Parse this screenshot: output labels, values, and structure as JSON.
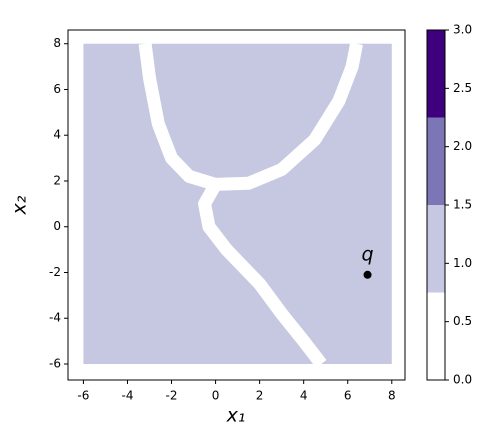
{
  "chart_data": {
    "type": "contour",
    "xlabel": "x₁",
    "ylabel": "x₂",
    "xlim": [
      -6.7,
      8.6
    ],
    "ylim": [
      -6.7,
      8.6
    ],
    "xticks": [
      -6,
      -4,
      -2,
      0,
      2,
      4,
      6,
      8
    ],
    "yticks": [
      -6,
      -4,
      -2,
      0,
      2,
      4,
      6,
      8
    ],
    "region": {
      "value": 1,
      "x": [
        -6,
        8
      ],
      "y": [
        -6,
        8
      ]
    },
    "bands": [
      {
        "value": 0,
        "x": [
          -3.2,
          -3.0,
          -2.6,
          -2.0,
          -1.2,
          0,
          1.5,
          3.0,
          4.5,
          5.6,
          6.2,
          6.4
        ],
        "y": [
          8.0,
          6.5,
          4.5,
          3.0,
          2.2,
          1.85,
          1.9,
          2.5,
          3.8,
          5.5,
          7.0,
          8.0
        ]
      },
      {
        "value": 0,
        "x": [
          0,
          -0.5,
          -0.3,
          0.5,
          2.0,
          3.0,
          4.0,
          4.8
        ],
        "y": [
          1.85,
          1.0,
          0,
          -1.0,
          -2.5,
          -3.8,
          -5.0,
          -6.0
        ]
      }
    ],
    "point": {
      "label": "q",
      "x": 6.9,
      "y": -2.1
    },
    "colorbar": {
      "lim": [
        0,
        3
      ],
      "levels": [
        0,
        0.75,
        1.5,
        2.25,
        3
      ],
      "colors": [
        "#ffffff",
        "#c6c7e1",
        "#7c76b6",
        "#3f007d"
      ],
      "ticks": [
        {
          "value": 0,
          "label": "0.0"
        },
        {
          "value": 0.5,
          "label": "0.5"
        },
        {
          "value": 1,
          "label": "1.0"
        },
        {
          "value": 1.5,
          "label": "1.5"
        },
        {
          "value": 2,
          "label": "2.0"
        },
        {
          "value": 2.5,
          "label": "2.5"
        },
        {
          "value": 3,
          "label": "3.0"
        }
      ]
    }
  }
}
